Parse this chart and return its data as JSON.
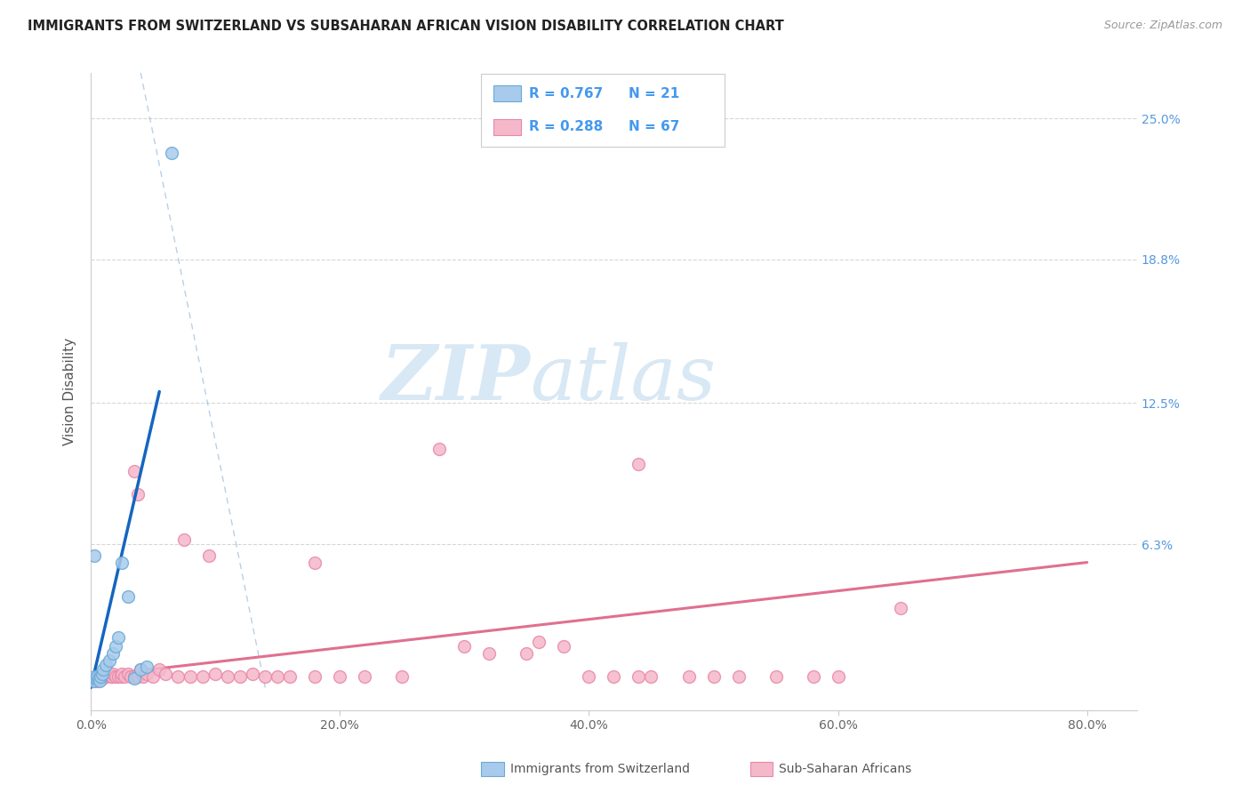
{
  "title": "IMMIGRANTS FROM SWITZERLAND VS SUBSAHARAN AFRICAN VISION DISABILITY CORRELATION CHART",
  "source": "Source: ZipAtlas.com",
  "ylabel": "Vision Disability",
  "yticks_labels": [
    "6.3%",
    "12.5%",
    "18.8%",
    "25.0%"
  ],
  "ytick_vals": [
    6.3,
    12.5,
    18.8,
    25.0
  ],
  "xtick_vals": [
    0,
    20,
    40,
    60,
    80
  ],
  "xtick_labels": [
    "0.0%",
    "20.0%",
    "40.0%",
    "60.0%",
    "80.0%"
  ],
  "xlim": [
    0.0,
    84.0
  ],
  "ylim": [
    -1.0,
    27.0
  ],
  "legend_r1": "R = 0.767",
  "legend_n1": "N = 21",
  "legend_r2": "R = 0.288",
  "legend_n2": "N = 67",
  "color_blue_fill": "#a8caec",
  "color_blue_edge": "#6aaad4",
  "color_pink_fill": "#f5b8cb",
  "color_pink_edge": "#e888a8",
  "color_line_blue": "#1565c0",
  "color_line_pink": "#e07090",
  "color_diag": "#8ab0d8",
  "color_grid": "#cccccc",
  "watermark_zip": "ZIP",
  "watermark_atlas": "atlas",
  "swiss_points": [
    [
      0.2,
      0.3
    ],
    [
      0.3,
      0.5
    ],
    [
      0.4,
      0.4
    ],
    [
      0.5,
      0.5
    ],
    [
      0.6,
      0.4
    ],
    [
      0.7,
      0.3
    ],
    [
      0.8,
      0.5
    ],
    [
      0.9,
      0.6
    ],
    [
      1.0,
      0.8
    ],
    [
      1.2,
      1.0
    ],
    [
      1.5,
      1.2
    ],
    [
      1.8,
      1.5
    ],
    [
      2.0,
      1.8
    ],
    [
      2.2,
      2.2
    ],
    [
      2.5,
      5.5
    ],
    [
      3.0,
      4.0
    ],
    [
      3.5,
      0.4
    ],
    [
      4.0,
      0.8
    ],
    [
      4.5,
      0.9
    ],
    [
      0.3,
      5.8
    ],
    [
      6.5,
      23.5
    ]
  ],
  "subsaharan_points": [
    [
      0.3,
      0.3
    ],
    [
      0.4,
      0.4
    ],
    [
      0.5,
      0.3
    ],
    [
      0.6,
      0.4
    ],
    [
      0.7,
      0.4
    ],
    [
      0.8,
      0.5
    ],
    [
      0.9,
      0.4
    ],
    [
      1.0,
      0.5
    ],
    [
      1.1,
      0.5
    ],
    [
      1.2,
      0.5
    ],
    [
      1.3,
      0.6
    ],
    [
      1.5,
      0.6
    ],
    [
      1.6,
      0.5
    ],
    [
      1.7,
      0.5
    ],
    [
      1.8,
      0.6
    ],
    [
      2.0,
      0.5
    ],
    [
      2.2,
      0.5
    ],
    [
      2.4,
      0.5
    ],
    [
      2.5,
      0.6
    ],
    [
      2.7,
      0.5
    ],
    [
      3.0,
      0.6
    ],
    [
      3.2,
      0.5
    ],
    [
      3.5,
      0.5
    ],
    [
      3.8,
      0.5
    ],
    [
      4.0,
      0.8
    ],
    [
      4.2,
      0.5
    ],
    [
      4.5,
      0.6
    ],
    [
      5.0,
      0.5
    ],
    [
      5.5,
      0.8
    ],
    [
      6.0,
      0.6
    ],
    [
      7.0,
      0.5
    ],
    [
      8.0,
      0.5
    ],
    [
      9.0,
      0.5
    ],
    [
      10.0,
      0.6
    ],
    [
      11.0,
      0.5
    ],
    [
      12.0,
      0.5
    ],
    [
      13.0,
      0.6
    ],
    [
      14.0,
      0.5
    ],
    [
      15.0,
      0.5
    ],
    [
      16.0,
      0.5
    ],
    [
      18.0,
      0.5
    ],
    [
      20.0,
      0.5
    ],
    [
      22.0,
      0.5
    ],
    [
      25.0,
      0.5
    ],
    [
      7.5,
      6.5
    ],
    [
      9.5,
      5.8
    ],
    [
      18.0,
      5.5
    ],
    [
      30.0,
      1.8
    ],
    [
      32.0,
      1.5
    ],
    [
      35.0,
      1.5
    ],
    [
      36.0,
      2.0
    ],
    [
      38.0,
      1.8
    ],
    [
      40.0,
      0.5
    ],
    [
      42.0,
      0.5
    ],
    [
      44.0,
      0.5
    ],
    [
      45.0,
      0.5
    ],
    [
      48.0,
      0.5
    ],
    [
      50.0,
      0.5
    ],
    [
      52.0,
      0.5
    ],
    [
      55.0,
      0.5
    ],
    [
      58.0,
      0.5
    ],
    [
      60.0,
      0.5
    ],
    [
      28.0,
      10.5
    ],
    [
      44.0,
      9.8
    ],
    [
      3.5,
      9.5
    ],
    [
      3.8,
      8.5
    ],
    [
      65.0,
      3.5
    ]
  ],
  "swiss_line_x": [
    0.0,
    5.5
  ],
  "swiss_line_y": [
    0.0,
    13.0
  ],
  "subsaharan_line_x": [
    0.0,
    80.0
  ],
  "subsaharan_line_y": [
    0.5,
    5.5
  ],
  "diag_line_x": [
    4.0,
    14.0
  ],
  "diag_line_y": [
    27.0,
    0.0
  ]
}
